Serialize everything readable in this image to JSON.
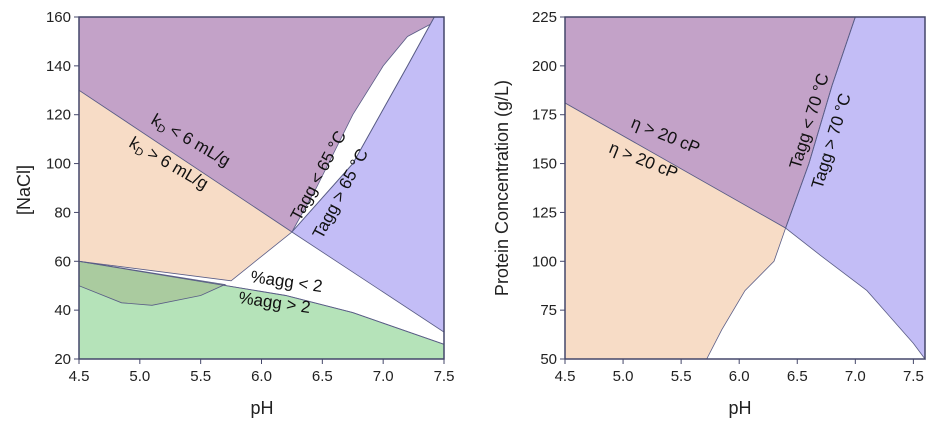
{
  "chart_data": [
    {
      "type": "area",
      "title": "",
      "xlabel": "pH",
      "ylabel": "[NaCl]",
      "xlim": [
        4.5,
        7.5
      ],
      "ylim": [
        20,
        160
      ],
      "xticks": [
        "4.5",
        "5.0",
        "5.5",
        "6.0",
        "6.5",
        "7.0",
        "7.5"
      ],
      "yticks": [
        "20",
        "40",
        "60",
        "80",
        "100",
        "120",
        "140",
        "160"
      ],
      "grid": false,
      "colors": {
        "kd_low": "#c3a2c8",
        "kd_high": "#f7dcc6",
        "tagg_high": "#c3bdf6",
        "agg_high": "#b5e3b9",
        "agg_overlap": "#aacb9f"
      },
      "regions": [
        {
          "id": "kd_low",
          "label": "k_D < 6 mL/g",
          "polygon": [
            [
              4.5,
              130
            ],
            [
              6.25,
              72
            ],
            [
              6.45,
              90
            ],
            [
              6.75,
              120
            ],
            [
              7.0,
              140
            ],
            [
              7.2,
              152
            ],
            [
              7.5,
              160
            ],
            [
              4.5,
              160
            ]
          ]
        },
        {
          "id": "kd_high",
          "label": "k_D > 6 mL/g",
          "polygon": [
            [
              4.5,
              130
            ],
            [
              6.25,
              72
            ],
            [
              5.75,
              52
            ],
            [
              4.5,
              60
            ]
          ]
        },
        {
          "id": "tagg_high",
          "label": "Tagg > 65 °C",
          "polygon": [
            [
              7.5,
              160
            ],
            [
              7.42,
              160
            ],
            [
              7.2,
              140
            ],
            [
              6.75,
              100
            ],
            [
              6.25,
              72
            ],
            [
              7.5,
              31
            ]
          ]
        },
        {
          "id": "agg_high",
          "label": "%agg > 2",
          "polygon": [
            [
              4.5,
              60
            ],
            [
              6.2,
              46
            ],
            [
              6.75,
              39
            ],
            [
              7.5,
              26
            ],
            [
              7.5,
              20
            ],
            [
              4.5,
              20
            ]
          ]
        },
        {
          "id": "agg_overlap",
          "label": "",
          "polygon": [
            [
              4.5,
              60
            ],
            [
              5.7,
              50.5
            ],
            [
              5.5,
              46
            ],
            [
              5.1,
              42
            ],
            [
              4.85,
              43
            ],
            [
              4.5,
              50
            ]
          ]
        }
      ],
      "boundaries": [
        {
          "label": "Tagg < 65 °C",
          "points": [
            [
              6.25,
              72
            ],
            [
              6.75,
              100
            ],
            [
              7.2,
              140
            ],
            [
              7.42,
              160
            ]
          ]
        },
        {
          "label": "%agg < 2",
          "points": [
            [
              4.5,
              60
            ],
            [
              6.2,
              46
            ],
            [
              6.75,
              39
            ],
            [
              7.5,
              26
            ]
          ]
        }
      ]
    },
    {
      "type": "area",
      "title": "",
      "xlabel": "pH",
      "ylabel": "Protein Concentration (g/L)",
      "xlim": [
        4.5,
        7.6
      ],
      "ylim": [
        50,
        225
      ],
      "xticks": [
        "4.5",
        "5.0",
        "5.5",
        "6.0",
        "6.5",
        "7.0",
        "7.5"
      ],
      "yticks": [
        "50",
        "75",
        "100",
        "125",
        "150",
        "175",
        "200",
        "225"
      ],
      "grid": false,
      "colors": {
        "visc_high": "#c3a2c8",
        "visc_low": "#f7dcc6",
        "tagg_high": "#c3bdf6"
      },
      "regions": [
        {
          "id": "visc_high",
          "label": "η > 20 cP",
          "polygon": [
            [
              4.5,
              181
            ],
            [
              6.4,
              117
            ],
            [
              6.6,
              150
            ],
            [
              6.8,
              190
            ],
            [
              7.0,
              225
            ],
            [
              4.5,
              225
            ]
          ]
        },
        {
          "id": "visc_low",
          "label": "η > 20 cP",
          "polygon": [
            [
              4.5,
              181
            ],
            [
              6.4,
              117
            ],
            [
              6.3,
              100
            ],
            [
              6.05,
              85
            ],
            [
              5.85,
              65
            ],
            [
              5.72,
              50
            ],
            [
              4.5,
              50
            ]
          ]
        },
        {
          "id": "tagg_high",
          "label": "Tagg > 70 °C",
          "polygon": [
            [
              7.0,
              225
            ],
            [
              7.6,
              225
            ],
            [
              7.6,
              50
            ],
            [
              7.5,
              58
            ],
            [
              7.1,
              85
            ],
            [
              6.7,
              103
            ],
            [
              6.4,
              117
            ],
            [
              6.6,
              150
            ],
            [
              6.8,
              190
            ]
          ]
        }
      ],
      "boundaries": [
        {
          "label": "Tagg < 70 °C",
          "points": [
            [
              6.4,
              117
            ],
            [
              6.6,
              150
            ],
            [
              6.8,
              190
            ],
            [
              7.0,
              225
            ]
          ]
        }
      ]
    }
  ]
}
